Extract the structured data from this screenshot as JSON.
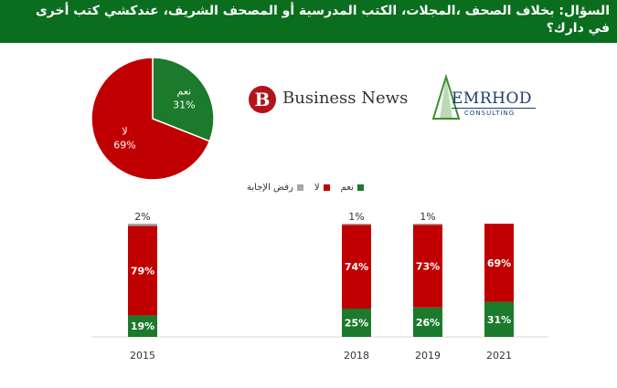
{
  "header": {
    "question": "السؤال: بخلاف الصحف ،المجلات،  الكتب المدرسية أو المصحف الشريف، عندكشي كتب أخرى في دارك؟"
  },
  "logos": {
    "business_news": {
      "mark": "B",
      "text": "Business News"
    },
    "emrhod": {
      "text": "EMRHOD",
      "sub": "CONSULTING"
    }
  },
  "colors": {
    "yes": "#1b7a2b",
    "no": "#c00000",
    "refused": "#a6a6a6"
  },
  "chart_data": [
    {
      "type": "pie",
      "slices": [
        {
          "label": "نعم",
          "value": 31,
          "display": "31%"
        },
        {
          "label": "لا",
          "value": 69,
          "display": "69%"
        }
      ]
    },
    {
      "type": "bar",
      "stacked": true,
      "legend": [
        "رفض الإجابة",
        "لا",
        "نعم"
      ],
      "legend_placement": "top-center",
      "categories": [
        "2015",
        "2018",
        "2019",
        "2021"
      ],
      "series": [
        {
          "name": "نعم",
          "values": [
            19,
            25,
            26,
            31
          ],
          "labels": [
            "19%",
            "25%",
            "26%",
            "31%"
          ]
        },
        {
          "name": "لا",
          "values": [
            79,
            74,
            73,
            69
          ],
          "labels": [
            "79%",
            "74%",
            "73%",
            "69%"
          ]
        },
        {
          "name": "رفض الإجابة",
          "values": [
            2,
            1,
            1,
            0
          ],
          "labels": [
            "2%",
            "1%",
            "1%",
            ""
          ]
        }
      ],
      "ylim": [
        0,
        100
      ],
      "grid": false
    }
  ]
}
